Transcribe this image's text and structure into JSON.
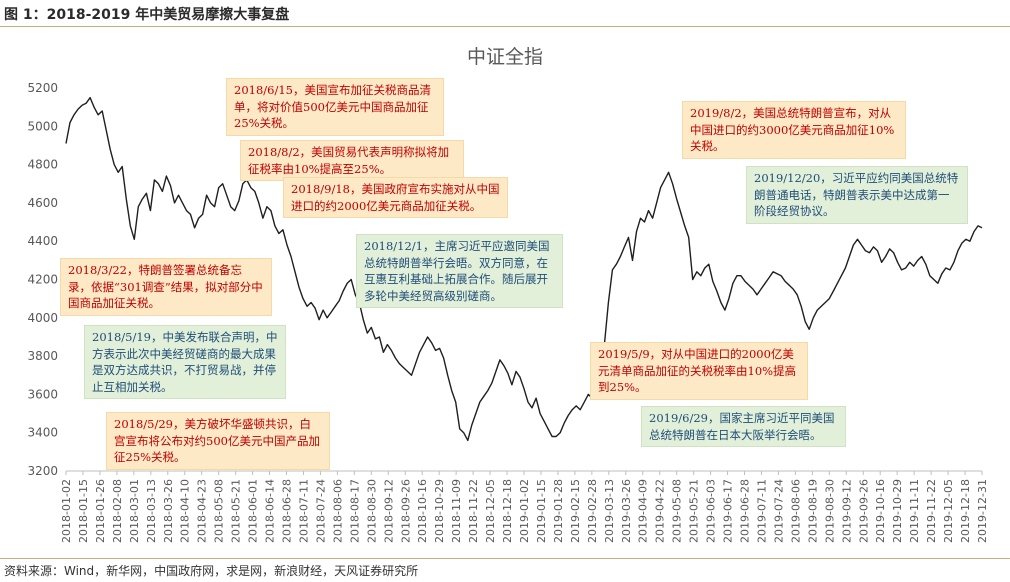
{
  "caption": "图 1：2018-2019 年中美贸易摩擦大事复盘",
  "source": "资料来源：Wind，新华网，中国政府网，求是网，新浪财经，天风证券研究所",
  "colors": {
    "line": "#1f1f1f",
    "grid": "#d9d9d9",
    "axis_text": "#595959",
    "orange_box": "#fde9c6",
    "green_box": "#e2efd9",
    "orange_text": "#c00000",
    "green_text": "#1f4e79"
  },
  "annotations": [
    {
      "id": "a1",
      "style": "orange",
      "text": "2018/6/15，美国宣布加征关税商品清单，将对价值500亿美元中国商品加征25%关税。"
    },
    {
      "id": "a2",
      "style": "orange",
      "text": "2018/8/2，美国贸易代表声明称拟将加征税率由10%提高至25%。"
    },
    {
      "id": "a3",
      "style": "orange",
      "text": "2018/9/18，美国政府宣布实施对从中国进口的约2000亿美元商品加征关税。"
    },
    {
      "id": "a4",
      "style": "green",
      "text": "2018/12/1，主席习近平应邀同美国总统特朗普举行会晤。双方同意，在互惠互利基础上拓展合作。随后展开多轮中美经贸高级别磋商。"
    },
    {
      "id": "a5",
      "style": "orange",
      "text": "2018/3/22，特朗普签署总统备忘录，依据“301调查”结果，拟对部分中国商品加征关税。"
    },
    {
      "id": "a6",
      "style": "green",
      "text": "2018/5/19，中美发布联合声明，中方表示此次中美经贸磋商的最大成果是双方达成共识，不打贸易战，并停止互相加关税。"
    },
    {
      "id": "a7",
      "style": "orange",
      "text": "2018/5/29，美方破坏华盛顿共识，白宫宣布将公布对约500亿美元中国产品加征25%关税。"
    },
    {
      "id": "a8",
      "style": "orange",
      "text": "2019/8/2，美国总统特朗普宣布，对从中国进口的约3000亿美元商品加征10%关税。"
    },
    {
      "id": "a9",
      "style": "green",
      "text": "2019/12/20，习近平应约同美国总统特朗普通电话，特朗普表示美中达成第一阶段经贸协议。"
    },
    {
      "id": "a10",
      "style": "orange",
      "text": "2019/5/9，对从中国进口的2000亿美元清单商品加征的关税税率由10%提高到25%。"
    },
    {
      "id": "a11",
      "style": "green",
      "text": "2019/6/29，国家主席习近平同美国总统特朗普在日本大阪举行会晤。"
    }
  ],
  "chart_data": {
    "type": "line",
    "title": "中证全指",
    "ylim": [
      3200,
      5200
    ],
    "yticks": [
      3200,
      3400,
      3600,
      3800,
      4000,
      4200,
      4400,
      4600,
      4800,
      5000,
      5200
    ],
    "grid": false,
    "x_tick_labels": [
      "2018-01-02",
      "2018-01-15",
      "2018-01-26",
      "2018-02-08",
      "2018-03-01",
      "2018-03-13",
      "2018-03-26",
      "2018-04-10",
      "2018-04-23",
      "2018-05-08",
      "2018-05-21",
      "2018-06-01",
      "2018-06-14",
      "2018-06-28",
      "2018-07-11",
      "2018-07-24",
      "2018-08-06",
      "2018-08-17",
      "2018-08-30",
      "2018-09-12",
      "2018-09-26",
      "2018-10-16",
      "2018-10-29",
      "2018-11-09",
      "2018-11-22",
      "2018-12-05",
      "2018-12-18",
      "2019-01-02",
      "2019-01-15",
      "2019-01-28",
      "2019-02-15",
      "2019-02-28",
      "2019-03-13",
      "2019-03-26",
      "2019-04-09",
      "2019-04-22",
      "2019-05-08",
      "2019-05-21",
      "2019-06-03",
      "2019-06-17",
      "2019-06-28",
      "2019-07-11",
      "2019-07-24",
      "2019-08-06",
      "2019-08-19",
      "2019-08-30",
      "2019-09-12",
      "2019-09-26",
      "2019-10-16",
      "2019-10-29",
      "2019-11-11",
      "2019-11-22",
      "2019-12-05",
      "2019-12-18",
      "2019-12-31"
    ],
    "series": [
      {
        "values": [
          4910,
          5020,
          5060,
          5090,
          5110,
          5120,
          5150,
          5100,
          5060,
          5080,
          4980,
          4880,
          4800,
          4760,
          4790,
          4620,
          4480,
          4410,
          4580,
          4620,
          4650,
          4560,
          4720,
          4700,
          4660,
          4740,
          4690,
          4600,
          4640,
          4600,
          4560,
          4540,
          4470,
          4520,
          4540,
          4640,
          4600,
          4580,
          4680,
          4700,
          4640,
          4580,
          4560,
          4610,
          4700,
          4720,
          4680,
          4660,
          4600,
          4520,
          4580,
          4560,
          4480,
          4440,
          4460,
          4380,
          4320,
          4240,
          4160,
          4100,
          4060,
          4080,
          4050,
          3990,
          4040,
          4000,
          4030,
          4060,
          4090,
          4140,
          4180,
          4200,
          4120,
          4080,
          3990,
          3920,
          3950,
          3890,
          3900,
          3820,
          3860,
          3830,
          3790,
          3760,
          3740,
          3720,
          3700,
          3760,
          3820,
          3860,
          3900,
          3870,
          3830,
          3840,
          3790,
          3700,
          3620,
          3560,
          3420,
          3400,
          3360,
          3440,
          3500,
          3560,
          3590,
          3620,
          3660,
          3720,
          3780,
          3750,
          3710,
          3650,
          3720,
          3690,
          3630,
          3560,
          3530,
          3580,
          3500,
          3460,
          3420,
          3380,
          3380,
          3400,
          3450,
          3490,
          3520,
          3540,
          3520,
          3560,
          3600,
          3580,
          3640,
          3720,
          3860,
          4080,
          4250,
          4280,
          4320,
          4370,
          4420,
          4300,
          4450,
          4520,
          4500,
          4560,
          4520,
          4600,
          4680,
          4720,
          4760,
          4700,
          4620,
          4550,
          4480,
          4420,
          4200,
          4240,
          4220,
          4260,
          4280,
          4190,
          4140,
          4080,
          4040,
          4100,
          4180,
          4220,
          4220,
          4190,
          4170,
          4150,
          4120,
          4150,
          4180,
          4210,
          4240,
          4230,
          4220,
          4190,
          4170,
          4150,
          4120,
          4060,
          3980,
          3940,
          4000,
          4040,
          4060,
          4080,
          4100,
          4140,
          4180,
          4220,
          4260,
          4320,
          4380,
          4410,
          4380,
          4350,
          4340,
          4370,
          4350,
          4290,
          4320,
          4360,
          4340,
          4290,
          4250,
          4260,
          4290,
          4270,
          4300,
          4320,
          4280,
          4220,
          4200,
          4180,
          4230,
          4260,
          4250,
          4290,
          4350,
          4390,
          4410,
          4400,
          4450,
          4480,
          4470
        ]
      }
    ]
  }
}
